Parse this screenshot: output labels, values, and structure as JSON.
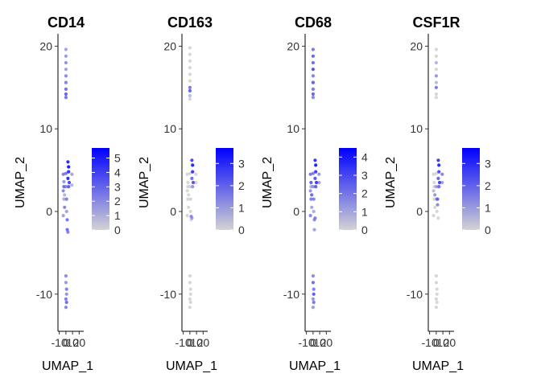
{
  "chart_data": [
    {
      "type": "scatter",
      "title": "CD14",
      "xlabel": "UMAP_1",
      "ylabel": "UMAP_2",
      "x_ticks": [
        "-10",
        "0",
        "10",
        "20"
      ],
      "y_ticks": [
        "20",
        "10",
        "0",
        "-10"
      ],
      "xlim": [
        -12,
        22
      ],
      "ylim": [
        -14.5,
        21.5
      ],
      "color_scale": {
        "low_color": "#d3d3d3",
        "high_color": "#0000ff",
        "min": 0,
        "max": 5.7,
        "ticks": [
          "5",
          "4",
          "3",
          "2",
          "1",
          "0"
        ]
      },
      "points": [
        [
          0,
          19.6,
          1.5
        ],
        [
          0,
          18.8,
          1.8
        ],
        [
          0,
          18.0,
          2.0
        ],
        [
          0,
          17.2,
          1.6
        ],
        [
          0,
          16.4,
          2.2
        ],
        [
          0,
          15.6,
          2.5
        ],
        [
          0,
          14.8,
          3.0
        ],
        [
          0,
          14.2,
          3.4
        ],
        [
          0,
          13.8,
          2.8
        ],
        [
          -4,
          4.5,
          2.5
        ],
        [
          -3,
          3.6,
          1.8
        ],
        [
          -4,
          2.5,
          2.2
        ],
        [
          -3,
          1.5,
          1.2
        ],
        [
          -2,
          0.5,
          2.4
        ],
        [
          -4,
          -0.5,
          1.5
        ],
        [
          -3,
          3.0,
          3.0
        ],
        [
          -2,
          2.0,
          1.0
        ],
        [
          0,
          4.6,
          2.8
        ],
        [
          0,
          3.0,
          2.0
        ],
        [
          1,
          1.5,
          2.5
        ],
        [
          1,
          0.0,
          1.5
        ],
        [
          2,
          -1.0,
          2.8
        ],
        [
          2,
          -2.2,
          3.0
        ],
        [
          3,
          -2.5,
          2.4
        ],
        [
          3,
          6.0,
          5.2
        ],
        [
          4,
          5.4,
          5.5
        ],
        [
          4,
          4.8,
          4.8
        ],
        [
          3,
          4.0,
          5.0
        ],
        [
          5,
          3.5,
          4.2
        ],
        [
          4,
          3.0,
          3.5
        ],
        [
          9,
          4.5,
          1.5
        ],
        [
          9,
          3.2,
          1.0
        ],
        [
          0,
          -7.8,
          2.2
        ],
        [
          0,
          -8.6,
          1.8
        ],
        [
          1,
          -9.4,
          2.5
        ],
        [
          1,
          -10.0,
          2.0
        ],
        [
          0,
          -10.6,
          2.6
        ],
        [
          1,
          -11.0,
          3.0
        ],
        [
          0,
          -11.6,
          2.4
        ]
      ]
    },
    {
      "type": "scatter",
      "title": "CD163",
      "xlabel": "UMAP_1",
      "ylabel": "UMAP_2",
      "x_ticks": [
        "-10",
        "0",
        "10",
        "20"
      ],
      "y_ticks": [
        "20",
        "10",
        "0",
        "-10"
      ],
      "xlim": [
        -12,
        22
      ],
      "ylim": [
        -14.5,
        21.5
      ],
      "color_scale": {
        "low_color": "#d3d3d3",
        "high_color": "#0000ff",
        "min": 0,
        "max": 3.7,
        "ticks": [
          "3",
          "2",
          "1",
          "0"
        ]
      },
      "points": [
        [
          0,
          19.8,
          0
        ],
        [
          0,
          19.0,
          0
        ],
        [
          0,
          18.2,
          0
        ],
        [
          0,
          17.4,
          0
        ],
        [
          0,
          16.6,
          0
        ],
        [
          0,
          15.8,
          0
        ],
        [
          0,
          15.0,
          1.8
        ],
        [
          0,
          14.6,
          2.2
        ],
        [
          0,
          14.0,
          0.5
        ],
        [
          0,
          13.6,
          0
        ],
        [
          -4,
          4.5,
          0
        ],
        [
          -3,
          3.5,
          0
        ],
        [
          -4,
          2.5,
          0
        ],
        [
          -3,
          1.5,
          0
        ],
        [
          -2,
          0.5,
          0
        ],
        [
          -4,
          -0.5,
          0
        ],
        [
          -3,
          3.0,
          0
        ],
        [
          -2,
          2.0,
          0
        ],
        [
          0,
          4.6,
          0
        ],
        [
          0,
          3.0,
          0
        ],
        [
          1,
          1.5,
          0
        ],
        [
          1,
          0.0,
          0
        ],
        [
          2,
          -1.0,
          0
        ],
        [
          2,
          -0.6,
          1.4
        ],
        [
          3,
          -0.8,
          1.0
        ],
        [
          3,
          6.2,
          2.8
        ],
        [
          4,
          5.6,
          3.4
        ],
        [
          4,
          4.8,
          3.0
        ],
        [
          3,
          4.0,
          2.0
        ],
        [
          5,
          3.5,
          2.5
        ],
        [
          4,
          3.0,
          1.2
        ],
        [
          9,
          4.5,
          0
        ],
        [
          9,
          3.5,
          0
        ],
        [
          0,
          -7.8,
          0
        ],
        [
          0,
          -8.6,
          0
        ],
        [
          1,
          -9.4,
          0
        ],
        [
          1,
          -10.0,
          0
        ],
        [
          0,
          -10.6,
          0
        ],
        [
          1,
          -11.0,
          0
        ],
        [
          0,
          -11.6,
          0
        ]
      ]
    },
    {
      "type": "scatter",
      "title": "CD68",
      "xlabel": "UMAP_1",
      "ylabel": "UMAP_2",
      "x_ticks": [
        "-10",
        "0",
        "10",
        "20"
      ],
      "y_ticks": [
        "20",
        "10",
        "0",
        "-10"
      ],
      "xlim": [
        -12,
        22
      ],
      "ylim": [
        -14.5,
        21.5
      ],
      "color_scale": {
        "low_color": "#d3d3d3",
        "high_color": "#0000ff",
        "min": 0,
        "max": 4.5,
        "ticks": [
          "4",
          "3",
          "2",
          "1",
          "0"
        ]
      },
      "points": [
        [
          0,
          19.6,
          2.2
        ],
        [
          0,
          18.8,
          2.6
        ],
        [
          0,
          18.0,
          2.4
        ],
        [
          0,
          17.2,
          3.0
        ],
        [
          0,
          16.4,
          2.0
        ],
        [
          0,
          15.6,
          2.8
        ],
        [
          0,
          14.8,
          2.2
        ],
        [
          0,
          14.2,
          2.6
        ],
        [
          0,
          13.8,
          1.8
        ],
        [
          -4,
          4.5,
          2.2
        ],
        [
          -3,
          3.5,
          2.8
        ],
        [
          -4,
          2.5,
          1.5
        ],
        [
          -3,
          1.5,
          2.0
        ],
        [
          -2,
          0.5,
          1.2
        ],
        [
          -4,
          -0.5,
          1.8
        ],
        [
          -3,
          3.0,
          1.0
        ],
        [
          -2,
          2.0,
          2.5
        ],
        [
          0,
          4.6,
          2.0
        ],
        [
          0,
          3.0,
          1.5
        ],
        [
          1,
          1.5,
          2.0
        ],
        [
          1,
          0.0,
          1.0
        ],
        [
          2,
          -1.0,
          1.8
        ],
        [
          2,
          -2.2,
          1.2
        ],
        [
          3,
          -0.8,
          2.0
        ],
        [
          3,
          6.2,
          3.8
        ],
        [
          4,
          5.6,
          4.2
        ],
        [
          4,
          4.8,
          3.5
        ],
        [
          3,
          4.0,
          3.0
        ],
        [
          5,
          3.5,
          3.6
        ],
        [
          4,
          3.0,
          2.8
        ],
        [
          9,
          4.5,
          1.5
        ],
        [
          9,
          3.5,
          1.2
        ],
        [
          0,
          -7.8,
          1.8
        ],
        [
          0,
          -8.6,
          2.4
        ],
        [
          1,
          -9.4,
          2.0
        ],
        [
          1,
          -10.0,
          2.8
        ],
        [
          0,
          -10.6,
          1.6
        ],
        [
          1,
          -11.0,
          2.2
        ],
        [
          0,
          -11.6,
          1.4
        ]
      ]
    },
    {
      "type": "scatter",
      "title": "CSF1R",
      "xlabel": "UMAP_1",
      "ylabel": "UMAP_2",
      "x_ticks": [
        "-10",
        "0",
        "10",
        "20"
      ],
      "y_ticks": [
        "20",
        "10",
        "0",
        "-10"
      ],
      "xlim": [
        -12,
        22
      ],
      "ylim": [
        -14.5,
        21.5
      ],
      "color_scale": {
        "low_color": "#d3d3d3",
        "high_color": "#0000ff",
        "min": 0,
        "max": 3.7,
        "ticks": [
          "3",
          "2",
          "1",
          "0"
        ]
      },
      "points": [
        [
          0,
          19.6,
          0
        ],
        [
          0,
          18.8,
          0
        ],
        [
          0,
          18.0,
          0.6
        ],
        [
          0,
          17.2,
          0
        ],
        [
          0,
          16.4,
          1.2
        ],
        [
          0,
          15.6,
          0.5
        ],
        [
          0,
          15.0,
          1.8
        ],
        [
          0,
          14.2,
          0
        ],
        [
          0,
          13.8,
          0
        ],
        [
          -4,
          4.5,
          0
        ],
        [
          -3,
          3.5,
          0
        ],
        [
          -4,
          2.5,
          0.5
        ],
        [
          -3,
          1.5,
          0
        ],
        [
          -2,
          0.5,
          0
        ],
        [
          -4,
          -0.5,
          0
        ],
        [
          -3,
          3.0,
          0
        ],
        [
          -2,
          2.0,
          1.2
        ],
        [
          0,
          4.6,
          0
        ],
        [
          0,
          3.0,
          1.0
        ],
        [
          1,
          1.5,
          1.6
        ],
        [
          1,
          0.0,
          0
        ],
        [
          2,
          1.5,
          2.0
        ],
        [
          2,
          0.8,
          1.5
        ],
        [
          3,
          -0.8,
          0
        ],
        [
          3,
          6.2,
          3.0
        ],
        [
          4,
          5.6,
          3.3
        ],
        [
          4,
          4.8,
          2.6
        ],
        [
          3,
          4.0,
          2.2
        ],
        [
          5,
          3.5,
          2.8
        ],
        [
          4,
          3.0,
          2.0
        ],
        [
          9,
          4.5,
          1.6
        ],
        [
          9,
          3.5,
          1.0
        ],
        [
          0,
          -7.8,
          0
        ],
        [
          0,
          -8.6,
          0
        ],
        [
          1,
          -9.4,
          0
        ],
        [
          1,
          -10.0,
          0
        ],
        [
          0,
          -10.6,
          0
        ],
        [
          1,
          -11.0,
          0
        ],
        [
          0,
          -11.6,
          0
        ]
      ]
    }
  ]
}
